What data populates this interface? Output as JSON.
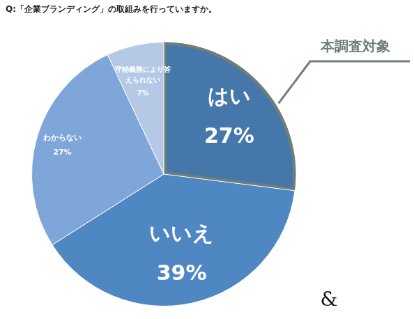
{
  "chart_data": {
    "type": "pie",
    "title": "Q:「企業ブランディング」の取組みを行っていますか。",
    "categories": [
      "はい",
      "いいえ",
      "わからない",
      "守秘義務により答えられない"
    ],
    "values": [
      27,
      39,
      27,
      7
    ],
    "value_labels": [
      "27%",
      "39%",
      "27%",
      "7%"
    ],
    "colors": [
      "#4677aa",
      "#4f87c2",
      "#7ea6d8",
      "#b5c9e6"
    ],
    "data_labels": true,
    "legend": "none",
    "annotations": [
      "本調査対象",
      "&"
    ]
  }
}
